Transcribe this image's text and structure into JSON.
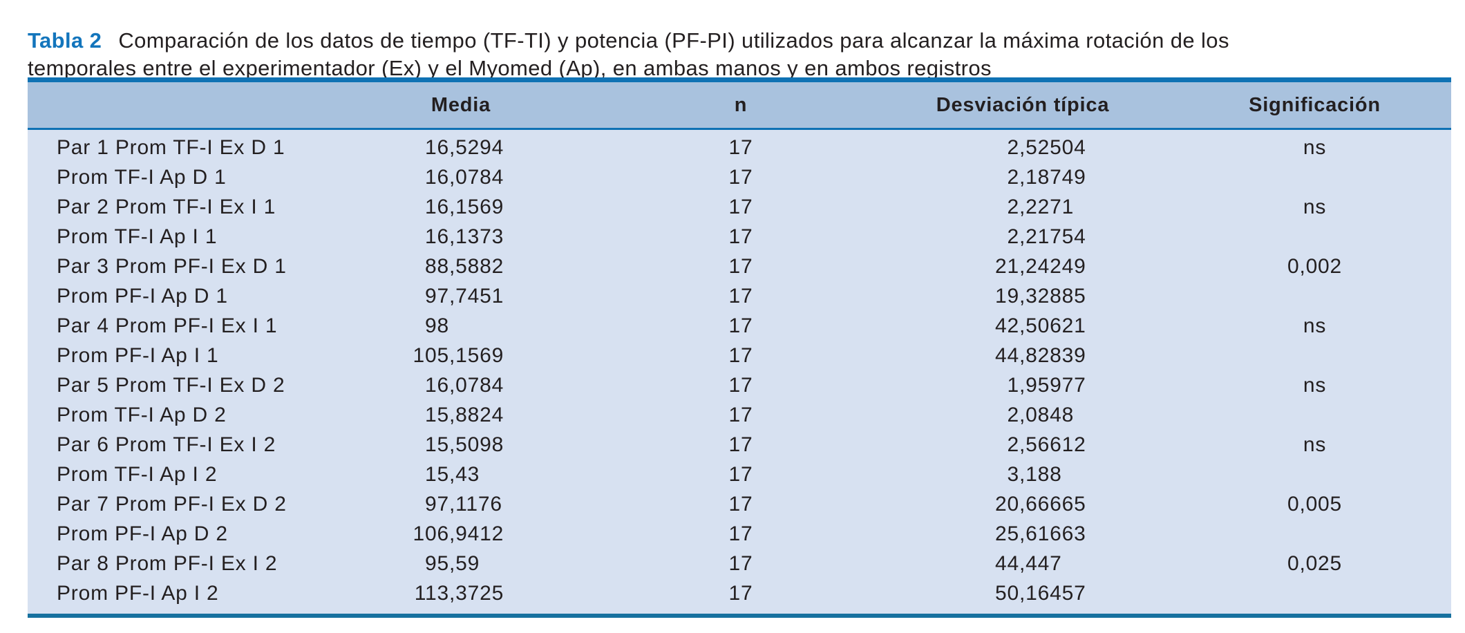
{
  "caption": {
    "label": "Tabla 2",
    "line1": "Comparación de los datos de tiempo (TF-TI) y potencia (PF-PI) utilizados para alcanzar la máxima rotación de los",
    "line2": "temporales entre el experimentador (Ex) y el Myomed (Ap), en ambas manos y en ambos registros"
  },
  "colors": {
    "caption_label_blue": "#1375bc",
    "rule_blue": "#0f72b4",
    "bottom_rule_blue": "#17719f",
    "header_band": "#a9c2de",
    "body_band": "#d7e1f1",
    "text": "#231f20"
  },
  "table": {
    "headers": {
      "blank": "",
      "media": "Media",
      "n": "n",
      "sd": "Desviación típica",
      "sig": "Significación"
    },
    "rows": [
      {
        "label": "Par 1 Prom TF-I Ex D 1",
        "media": "16,5294",
        "n": "17",
        "sd": "2,52504",
        "sig": "ns"
      },
      {
        "label": "Prom TF-I Ap D 1",
        "media": "16,0784",
        "n": "17",
        "sd": "2,18749",
        "sig": ""
      },
      {
        "label": "Par 2 Prom TF-I Ex I 1",
        "media": "16,1569",
        "n": "17",
        "sd": "2,2271",
        "sig": "ns"
      },
      {
        "label": "Prom TF-I Ap I 1",
        "media": "16,1373",
        "n": "17",
        "sd": "2,21754",
        "sig": ""
      },
      {
        "label": "Par 3 Prom PF-I Ex D 1",
        "media": "88,5882",
        "n": "17",
        "sd": "21,24249",
        "sig": "0,002"
      },
      {
        "label": "Prom PF-I Ap D 1",
        "media": "97,7451",
        "n": "17",
        "sd": "19,32885",
        "sig": ""
      },
      {
        "label": "Par 4 Prom PF-I Ex I 1",
        "media": "98",
        "n": "17",
        "sd": "42,50621",
        "sig": "ns"
      },
      {
        "label": "Prom PF-I Ap I 1",
        "media": "105,1569",
        "n": "17",
        "sd": "44,82839",
        "sig": ""
      },
      {
        "label": "Par 5 Prom TF-I Ex D 2",
        "media": "16,0784",
        "n": "17",
        "sd": "1,95977",
        "sig": "ns"
      },
      {
        "label": "Prom TF-I Ap D 2",
        "media": "15,8824",
        "n": "17",
        "sd": "2,0848",
        "sig": ""
      },
      {
        "label": "Par 6 Prom TF-I Ex I 2",
        "media": "15,5098",
        "n": "17",
        "sd": "2,56612",
        "sig": "ns"
      },
      {
        "label": "Prom TF-I Ap I 2",
        "media": "15,43",
        "n": "17",
        "sd": "3,188",
        "sig": ""
      },
      {
        "label": "Par 7 Prom PF-I Ex D 2",
        "media": "97,1176",
        "n": "17",
        "sd": "20,66665",
        "sig": "0,005"
      },
      {
        "label": "Prom PF-I Ap D 2",
        "media": "106,9412",
        "n": "17",
        "sd": "25,61663",
        "sig": ""
      },
      {
        "label": "Par 8 Prom PF-I Ex I 2",
        "media": "95,59",
        "n": "17",
        "sd": "44,447",
        "sig": "0,025"
      },
      {
        "label": "Prom PF-I Ap I 2",
        "media": "113,3725",
        "n": "17",
        "sd": "50,16457",
        "sig": ""
      }
    ]
  }
}
